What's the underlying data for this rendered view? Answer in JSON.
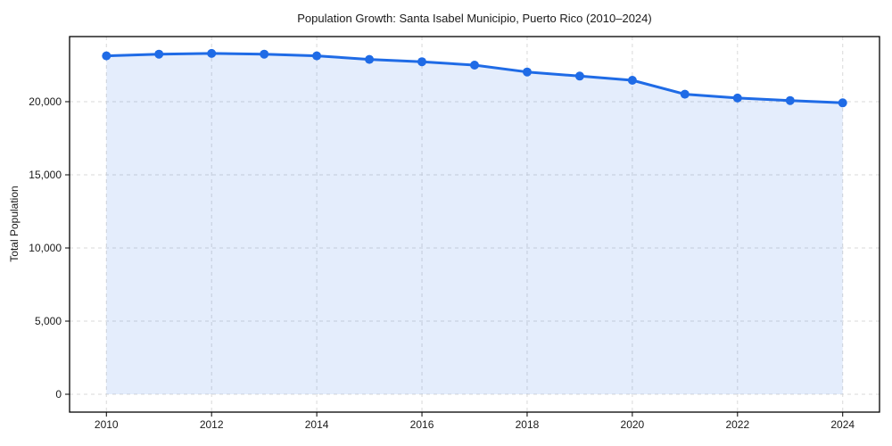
{
  "chart_data": {
    "type": "line",
    "title": "Population Growth: Santa Isabel Municipio, Puerto Rico (2010–2024)",
    "xlabel": "",
    "ylabel": "Total Population",
    "series_name": "Total Population",
    "x": [
      2010,
      2011,
      2012,
      2013,
      2014,
      2015,
      2016,
      2017,
      2018,
      2019,
      2020,
      2021,
      2022,
      2023,
      2024
    ],
    "values": [
      23130,
      23250,
      23300,
      23250,
      23130,
      22890,
      22730,
      22500,
      22030,
      21750,
      21460,
      20510,
      20250,
      20080,
      19920
    ],
    "x_ticks": [
      2010,
      2012,
      2014,
      2016,
      2018,
      2020,
      2022,
      2024
    ],
    "x_tick_labels": [
      "2010",
      "2012",
      "2014",
      "2016",
      "2018",
      "2020",
      "2022",
      "2024"
    ],
    "y_ticks": [
      0,
      5000,
      10000,
      15000,
      20000
    ],
    "y_tick_labels": [
      "0",
      "5,000",
      "10,000",
      "15,000",
      "20,000"
    ],
    "xlim": [
      2009.3,
      2024.7
    ],
    "ylim": [
      -1220,
      24450
    ],
    "grid": true,
    "legend": "none",
    "marker": "circle",
    "colors": {
      "line": "#1f6be6",
      "marker": "#1f6be6",
      "fill": "#1f6be6",
      "fill_opacity": 0.12,
      "grid": "#d9d9d9",
      "axis": "#000000",
      "text": "#1a1a1a",
      "background": "#ffffff"
    }
  }
}
